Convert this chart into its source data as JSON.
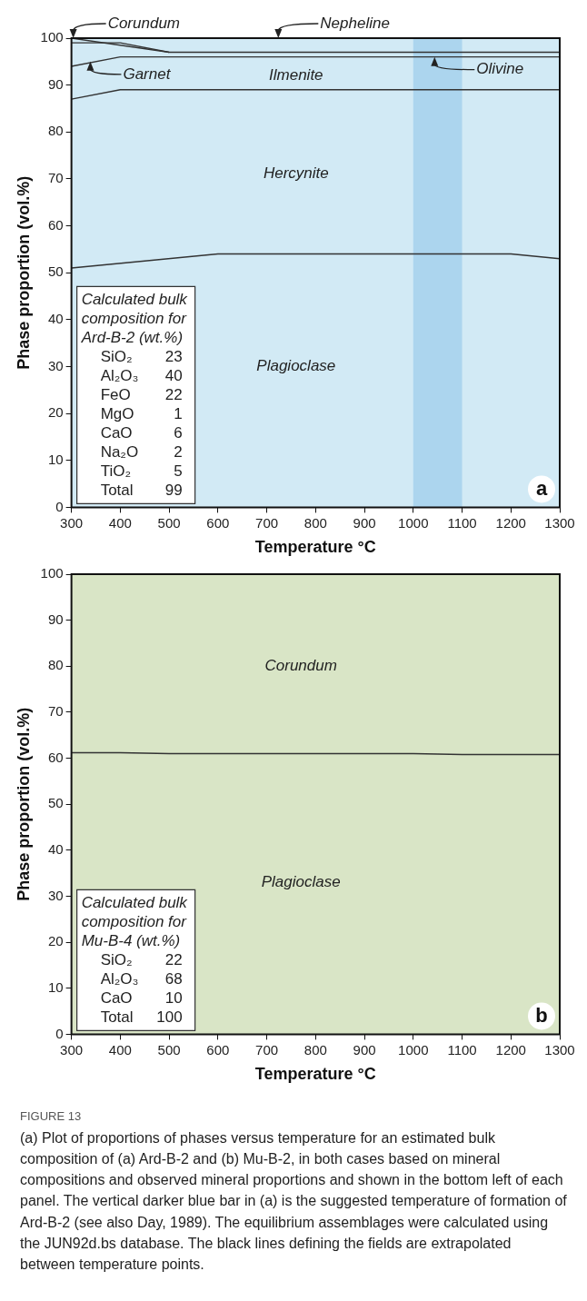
{
  "chart_data": [
    {
      "type": "line",
      "xlabel": "Temperature °C",
      "ylabel": "Phase proportion (vol.%)",
      "xlim": [
        300,
        1300
      ],
      "xticks": [
        300,
        400,
        500,
        600,
        700,
        800,
        900,
        1000,
        1100,
        1200,
        1300
      ],
      "ylim": [
        0,
        100
      ],
      "yticks": [
        0,
        10,
        20,
        30,
        40,
        50,
        60,
        70,
        80,
        90,
        100
      ],
      "marker": "none",
      "line_style": "solid",
      "bands": [
        {
          "axis": "x",
          "from": 300,
          "to": 1300,
          "color": "#d2eaf5"
        },
        {
          "axis": "x",
          "from": 1000,
          "to": 1100,
          "color": "#acd5ee"
        }
      ],
      "series": [
        {
          "color": "#333333",
          "x": [
            300,
            500,
            1300
          ],
          "values": [
            100,
            97,
            97
          ]
        },
        {
          "color": "#333333",
          "x": [
            300,
            400,
            500
          ],
          "values": [
            99,
            99,
            97
          ]
        },
        {
          "color": "#333333",
          "x": [
            300,
            400,
            1300
          ],
          "values": [
            94,
            96,
            96
          ]
        },
        {
          "color": "#333333",
          "x": [
            300,
            400,
            1300
          ],
          "values": [
            87,
            89,
            89
          ]
        },
        {
          "color": "#333333",
          "x": [
            300,
            600,
            1200,
            1300
          ],
          "values": [
            51,
            54,
            54,
            53
          ]
        }
      ],
      "annotations": [
        {
          "text": "Corundum",
          "x": 300,
          "y": 100
        },
        {
          "text": "Nepheline",
          "x": 720,
          "y": 100
        },
        {
          "text": "Garnet",
          "x": 335,
          "y": 95
        },
        {
          "text": "Olivine",
          "x": 1040,
          "y": 96
        },
        "Ilmenite",
        "Hercynite",
        "Plagioclase",
        "Calculated bulk\ncomposition for\nArd-B-2 (wt.%)\nSiO₂\t23\nAl₂O₃\t40\nFeO\t22\nMgO\t1\nCaO\t6\nNa₂O\t2\nTiO₂\t5\nTotal\t99",
        "a"
      ]
    },
    {
      "type": "line",
      "xlabel": "Temperature °C",
      "ylabel": "Phase proportion (vol.%)",
      "xlim": [
        300,
        1300
      ],
      "xticks": [
        300,
        400,
        500,
        600,
        700,
        800,
        900,
        1000,
        1100,
        1200,
        1300
      ],
      "ylim": [
        0,
        100
      ],
      "yticks": [
        0,
        10,
        20,
        30,
        40,
        50,
        60,
        70,
        80,
        90,
        100
      ],
      "marker": "none",
      "line_style": "solid",
      "bands": [
        {
          "axis": "x",
          "from": 300,
          "to": 1300,
          "color": "#d9e5c6"
        }
      ],
      "series": [
        {
          "color": "#333333",
          "x": [
            300,
            400,
            500,
            1000,
            1100,
            1300
          ],
          "values": [
            61.2,
            61.2,
            61,
            61,
            60.8,
            60.8
          ]
        }
      ],
      "annotations": [
        "Corundum",
        "Plagioclase",
        "Calculated bulk\ncomposition for\nMu-B-4 (wt.%)\nSiO₂\t22\nAl₂O₃\t68\nCaO\t10\nTotal\t100",
        "b",
        "FIGURE 13",
        "(a) Plot of proportions of phases versus temperature for an estimated bulk composition of (a) Ard-B-2 and (b) Mu-B-2, in both cases based on mineral compositions and observed mineral proportions and shown in the bottom left of each panel. The vertical darker blue bar in (a) is the suggested temperature of formation of Ard-B-2 (see also Day, 1989). The equilibrium assemblages were calculated using the JUN92d.bs database. The black lines defining the fields are extrapolated between temperature points."
      ]
    }
  ]
}
